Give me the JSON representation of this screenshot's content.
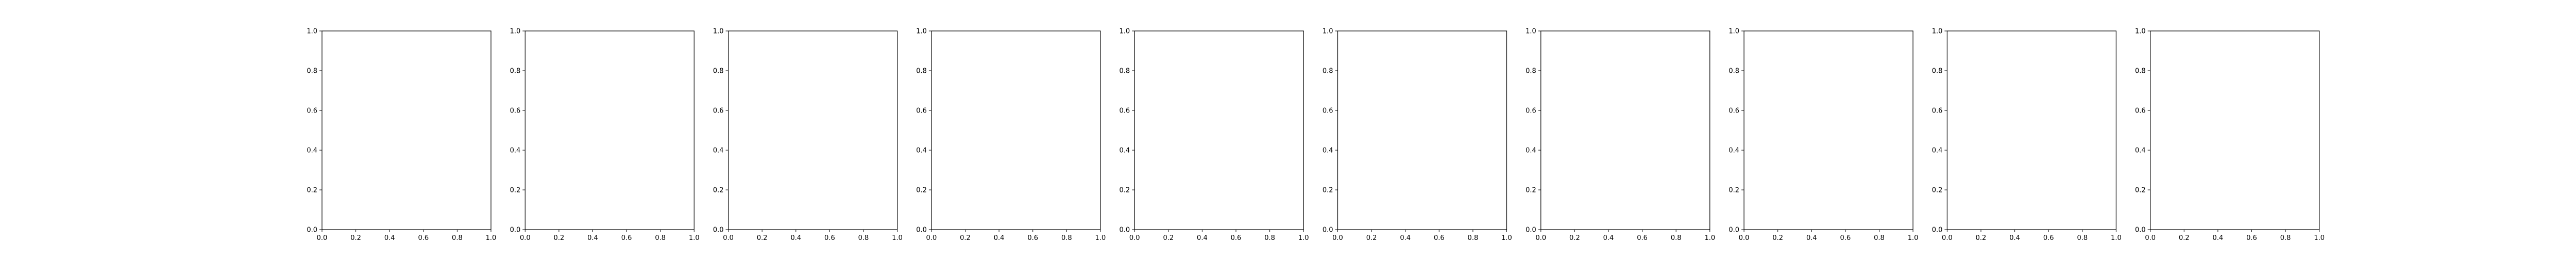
{
  "chart_data": [
    {
      "type": "scatter",
      "series": [],
      "xlim": [
        0.0,
        1.0
      ],
      "ylim": [
        0.0,
        1.0
      ],
      "x_ticks": [
        "0.0",
        "0.2",
        "0.4",
        "0.6",
        "0.8",
        "1.0"
      ],
      "y_ticks": [
        "0.0",
        "0.2",
        "0.4",
        "0.6",
        "0.8",
        "1.0"
      ],
      "grid": false
    },
    {
      "type": "scatter",
      "series": [],
      "xlim": [
        0.0,
        1.0
      ],
      "ylim": [
        0.0,
        1.0
      ],
      "x_ticks": [
        "0.0",
        "0.2",
        "0.4",
        "0.6",
        "0.8",
        "1.0"
      ],
      "y_ticks": [
        "0.0",
        "0.2",
        "0.4",
        "0.6",
        "0.8",
        "1.0"
      ],
      "grid": false
    },
    {
      "type": "scatter",
      "series": [],
      "xlim": [
        0.0,
        1.0
      ],
      "ylim": [
        0.0,
        1.0
      ],
      "x_ticks": [
        "0.0",
        "0.2",
        "0.4",
        "0.6",
        "0.8",
        "1.0"
      ],
      "y_ticks": [
        "0.0",
        "0.2",
        "0.4",
        "0.6",
        "0.8",
        "1.0"
      ],
      "grid": false
    },
    {
      "type": "scatter",
      "series": [],
      "xlim": [
        0.0,
        1.0
      ],
      "ylim": [
        0.0,
        1.0
      ],
      "x_ticks": [
        "0.0",
        "0.2",
        "0.4",
        "0.6",
        "0.8",
        "1.0"
      ],
      "y_ticks": [
        "0.0",
        "0.2",
        "0.4",
        "0.6",
        "0.8",
        "1.0"
      ],
      "grid": false
    },
    {
      "type": "scatter",
      "series": [],
      "xlim": [
        0.0,
        1.0
      ],
      "ylim": [
        0.0,
        1.0
      ],
      "x_ticks": [
        "0.0",
        "0.2",
        "0.4",
        "0.6",
        "0.8",
        "1.0"
      ],
      "y_ticks": [
        "0.0",
        "0.2",
        "0.4",
        "0.6",
        "0.8",
        "1.0"
      ],
      "grid": false
    },
    {
      "type": "scatter",
      "series": [],
      "xlim": [
        0.0,
        1.0
      ],
      "ylim": [
        0.0,
        1.0
      ],
      "x_ticks": [
        "0.0",
        "0.2",
        "0.4",
        "0.6",
        "0.8",
        "1.0"
      ],
      "y_ticks": [
        "0.0",
        "0.2",
        "0.4",
        "0.6",
        "0.8",
        "1.0"
      ],
      "grid": false
    },
    {
      "type": "scatter",
      "series": [],
      "xlim": [
        0.0,
        1.0
      ],
      "ylim": [
        0.0,
        1.0
      ],
      "x_ticks": [
        "0.0",
        "0.2",
        "0.4",
        "0.6",
        "0.8",
        "1.0"
      ],
      "y_ticks": [
        "0.0",
        "0.2",
        "0.4",
        "0.6",
        "0.8",
        "1.0"
      ],
      "grid": false
    },
    {
      "type": "scatter",
      "series": [],
      "xlim": [
        0.0,
        1.0
      ],
      "ylim": [
        0.0,
        1.0
      ],
      "x_ticks": [
        "0.0",
        "0.2",
        "0.4",
        "0.6",
        "0.8",
        "1.0"
      ],
      "y_ticks": [
        "0.0",
        "0.2",
        "0.4",
        "0.6",
        "0.8",
        "1.0"
      ],
      "grid": false
    },
    {
      "type": "scatter",
      "series": [],
      "xlim": [
        0.0,
        1.0
      ],
      "ylim": [
        0.0,
        1.0
      ],
      "x_ticks": [
        "0.0",
        "0.2",
        "0.4",
        "0.6",
        "0.8",
        "1.0"
      ],
      "y_ticks": [
        "0.0",
        "0.2",
        "0.4",
        "0.6",
        "0.8",
        "1.0"
      ],
      "grid": false
    },
    {
      "type": "scatter",
      "series": [],
      "xlim": [
        0.0,
        1.0
      ],
      "ylim": [
        0.0,
        1.0
      ],
      "x_ticks": [
        "0.0",
        "0.2",
        "0.4",
        "0.6",
        "0.8",
        "1.0"
      ],
      "y_ticks": [
        "0.0",
        "0.2",
        "0.4",
        "0.6",
        "0.8",
        "1.0"
      ],
      "grid": false
    }
  ]
}
